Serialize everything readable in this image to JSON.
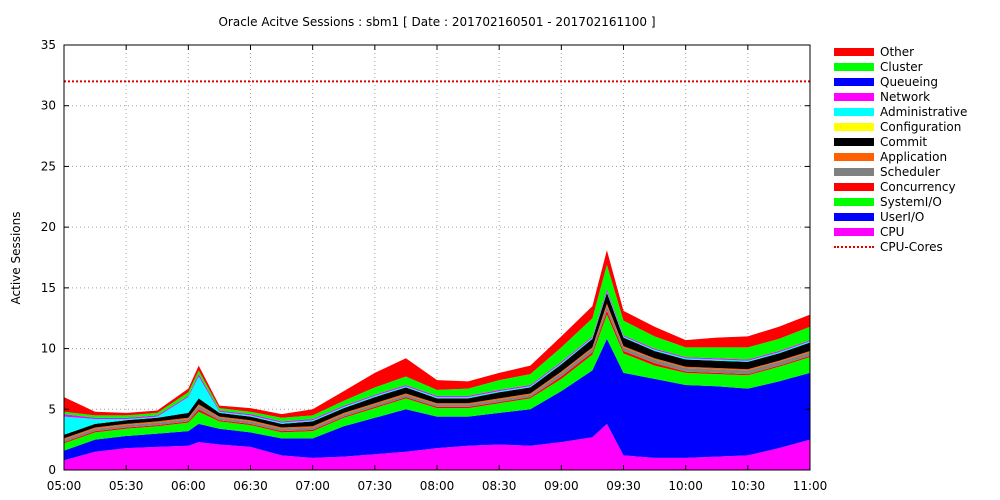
{
  "chart_data": {
    "type": "area",
    "stacked": true,
    "title": "Oracle Acitve Sessions : sbm1 [ Date : 201702160501 - 201702161100 ]",
    "xlabel": "",
    "ylabel": "Active Sessions",
    "ylim": [
      0,
      35
    ],
    "yticks": [
      "0",
      "5",
      "10",
      "15",
      "20",
      "25",
      "30",
      "35"
    ],
    "xticks": [
      "05:00",
      "05:30",
      "06:00",
      "06:30",
      "07:00",
      "07:30",
      "08:00",
      "08:30",
      "09:00",
      "09:30",
      "10:00",
      "10:30",
      "11:00"
    ],
    "grid": true,
    "legend_position": "right",
    "reference_line": {
      "name": "CPU-Cores",
      "value": 32,
      "color": "#e00000",
      "style": "dotted"
    },
    "x": [
      "05:00",
      "05:15",
      "05:30",
      "05:45",
      "06:00",
      "06:05",
      "06:15",
      "06:30",
      "06:45",
      "07:00",
      "07:15",
      "07:30",
      "07:45",
      "08:00",
      "08:15",
      "08:30",
      "08:45",
      "09:00",
      "09:15",
      "09:22",
      "09:30",
      "09:45",
      "10:00",
      "10:15",
      "10:30",
      "10:45",
      "11:00"
    ],
    "series": [
      {
        "name": "CPU",
        "color": "#ff00ff",
        "values": [
          0.8,
          1.5,
          1.8,
          1.9,
          2.0,
          2.3,
          2.1,
          1.9,
          1.2,
          1.0,
          1.1,
          1.3,
          1.5,
          1.8,
          2.0,
          2.1,
          2.0,
          2.3,
          2.7,
          3.8,
          1.2,
          1.0,
          1.0,
          1.1,
          1.2,
          1.8,
          2.5
        ]
      },
      {
        "name": "UserI/O",
        "color": "#0000ff",
        "values": [
          0.8,
          1.0,
          1.0,
          1.1,
          1.2,
          1.5,
          1.3,
          1.2,
          1.4,
          1.6,
          2.5,
          3.0,
          3.5,
          2.6,
          2.4,
          2.6,
          3.0,
          4.2,
          5.5,
          7.0,
          6.8,
          6.5,
          6.0,
          5.8,
          5.5,
          5.5,
          5.5
        ]
      },
      {
        "name": "SystemI/O",
        "color": "#00ff00",
        "values": [
          0.6,
          0.6,
          0.6,
          0.6,
          0.7,
          1.0,
          0.6,
          0.6,
          0.5,
          0.6,
          0.7,
          0.8,
          0.9,
          0.7,
          0.7,
          0.8,
          0.9,
          1.0,
          1.3,
          2.0,
          1.6,
          1.1,
          1.0,
          1.0,
          1.1,
          1.2,
          1.3
        ]
      },
      {
        "name": "Concurrency",
        "color": "#ff0000",
        "values": [
          0.1,
          0.1,
          0.1,
          0.1,
          0.1,
          0.2,
          0.1,
          0.1,
          0.1,
          0.1,
          0.1,
          0.1,
          0.1,
          0.1,
          0.1,
          0.1,
          0.1,
          0.2,
          0.2,
          0.3,
          0.2,
          0.2,
          0.1,
          0.1,
          0.1,
          0.1,
          0.1
        ]
      },
      {
        "name": "Scheduler",
        "color": "#808080",
        "values": [
          0.2,
          0.2,
          0.2,
          0.2,
          0.2,
          0.3,
          0.2,
          0.2,
          0.2,
          0.2,
          0.2,
          0.2,
          0.2,
          0.2,
          0.2,
          0.2,
          0.2,
          0.3,
          0.3,
          0.4,
          0.3,
          0.3,
          0.3,
          0.3,
          0.3,
          0.3,
          0.3
        ]
      },
      {
        "name": "Application",
        "color": "#ff6000",
        "values": [
          0.1,
          0.1,
          0.1,
          0.1,
          0.1,
          0.1,
          0.1,
          0.1,
          0.1,
          0.1,
          0.1,
          0.1,
          0.1,
          0.1,
          0.1,
          0.1,
          0.1,
          0.1,
          0.1,
          0.2,
          0.1,
          0.1,
          0.1,
          0.1,
          0.1,
          0.1,
          0.1
        ]
      },
      {
        "name": "Commit",
        "color": "#000000",
        "values": [
          0.3,
          0.3,
          0.3,
          0.3,
          0.4,
          0.5,
          0.3,
          0.3,
          0.3,
          0.4,
          0.4,
          0.5,
          0.5,
          0.4,
          0.4,
          0.5,
          0.5,
          0.6,
          0.7,
          0.9,
          0.7,
          0.6,
          0.6,
          0.6,
          0.6,
          0.6,
          0.7
        ]
      },
      {
        "name": "Configuration",
        "color": "#ffff00",
        "values": [
          0,
          0,
          0,
          0,
          0,
          0,
          0,
          0,
          0,
          0,
          0,
          0,
          0,
          0,
          0,
          0,
          0,
          0,
          0,
          0,
          0,
          0,
          0,
          0,
          0,
          0,
          0
        ]
      },
      {
        "name": "Administrative",
        "color": "#00ffff",
        "values": [
          1.5,
          0.4,
          0.1,
          0.1,
          1.3,
          1.8,
          0.1,
          0.1,
          0.1,
          0.1,
          0.1,
          0.1,
          0.1,
          0.1,
          0.1,
          0.1,
          0.1,
          0.1,
          0.1,
          0.1,
          0.1,
          0.1,
          0.1,
          0.1,
          0.1,
          0.1,
          0.1
        ]
      },
      {
        "name": "Network",
        "color": "#ff00ff",
        "values": [
          0.2,
          0.1,
          0.1,
          0.1,
          0.1,
          0.2,
          0.1,
          0.1,
          0.1,
          0.1,
          0.1,
          0.1,
          0.1,
          0.1,
          0.1,
          0.1,
          0.1,
          0.1,
          0.1,
          0.2,
          0.1,
          0.1,
          0.1,
          0.1,
          0.1,
          0.1,
          0.1
        ]
      },
      {
        "name": "Queueing",
        "color": "#0000ff",
        "values": [
          0,
          0,
          0,
          0,
          0,
          0,
          0,
          0,
          0,
          0,
          0,
          0,
          0,
          0,
          0,
          0,
          0,
          0,
          0,
          0,
          0,
          0,
          0,
          0,
          0,
          0,
          0
        ]
      },
      {
        "name": "Cluster",
        "color": "#00ff00",
        "values": [
          0.2,
          0.2,
          0.2,
          0.2,
          0.3,
          0.3,
          0.2,
          0.2,
          0.3,
          0.3,
          0.4,
          0.6,
          0.7,
          0.5,
          0.6,
          0.8,
          0.9,
          1.2,
          1.5,
          2.0,
          1.2,
          1.0,
          0.8,
          0.9,
          1.0,
          1.0,
          1.1
        ]
      },
      {
        "name": "Other",
        "color": "#ff0000",
        "values": [
          1.2,
          0.3,
          0.2,
          0.2,
          0.3,
          0.4,
          0.2,
          0.3,
          0.3,
          0.5,
          0.8,
          1.2,
          1.5,
          0.8,
          0.6,
          0.6,
          0.7,
          0.9,
          1.0,
          1.2,
          0.8,
          0.8,
          0.6,
          0.8,
          0.9,
          1.0,
          1.0
        ]
      }
    ],
    "legend": [
      {
        "label": "Other",
        "color": "#ff0000"
      },
      {
        "label": "Cluster",
        "color": "#00ff00"
      },
      {
        "label": "Queueing",
        "color": "#0000ff"
      },
      {
        "label": "Network",
        "color": "#ff00ff"
      },
      {
        "label": "Administrative",
        "color": "#00ffff"
      },
      {
        "label": "Configuration",
        "color": "#ffff00"
      },
      {
        "label": "Commit",
        "color": "#000000"
      },
      {
        "label": "Application",
        "color": "#ff6000"
      },
      {
        "label": "Scheduler",
        "color": "#808080"
      },
      {
        "label": "Concurrency",
        "color": "#ff0000"
      },
      {
        "label": "SystemI/O",
        "color": "#00ff00"
      },
      {
        "label": "UserI/O",
        "color": "#0000ff"
      },
      {
        "label": "CPU",
        "color": "#ff00ff"
      },
      {
        "label": "CPU-Cores",
        "color": "#e00000",
        "style": "dotted"
      }
    ]
  }
}
